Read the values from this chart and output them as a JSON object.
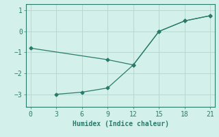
{
  "line1_x": [
    0,
    9,
    12,
    15,
    18,
    21
  ],
  "line1_y": [
    -0.8,
    -1.35,
    -1.6,
    0.0,
    0.5,
    0.75
  ],
  "line2_x": [
    3,
    6,
    9,
    12,
    15,
    18,
    21
  ],
  "line2_y": [
    -3.0,
    -2.9,
    -2.7,
    -1.6,
    0.0,
    0.5,
    0.75
  ],
  "line_color": "#2a7a6b",
  "bg_color": "#d4f0ea",
  "grid_color": "#b8d8d2",
  "xlabel": "Humidex (Indice chaleur)",
  "xlim": [
    -0.5,
    21.5
  ],
  "ylim": [
    -3.6,
    1.3
  ],
  "xticks": [
    0,
    3,
    6,
    9,
    12,
    15,
    18,
    21
  ],
  "yticks": [
    -3,
    -2,
    -1,
    0,
    1
  ],
  "xlabel_fontsize": 7,
  "tick_fontsize": 7
}
